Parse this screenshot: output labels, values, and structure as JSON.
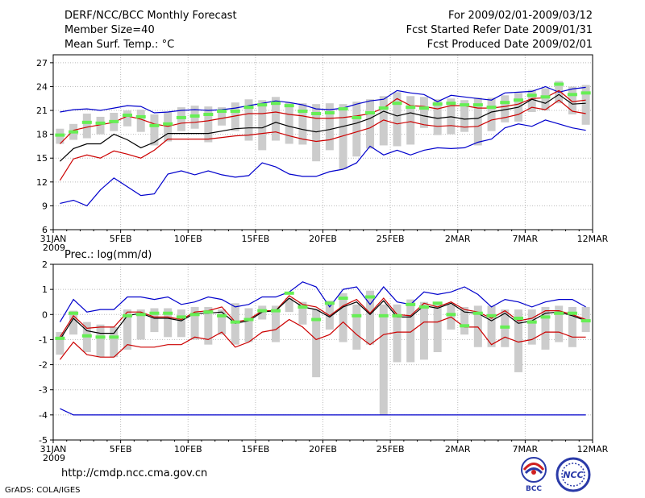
{
  "header": {
    "title": "DERF/NCC/BCC Monthly Forecast",
    "member_size": "Member Size=40",
    "variable": "Mean Surf. Temp.: °C",
    "period": "For 2009/02/01-2009/03/12",
    "refer_date": "Fcst Started Refer Date 2009/01/31",
    "produced_date": "Fcst Produced Date 2009/02/01"
  },
  "footer": {
    "url": "http://cmdp.ncc.cma.gov.cn",
    "credit": "GrADS: COLA/IGES",
    "logo_bcc": "BCC",
    "logo_ncc": "NCC"
  },
  "colors": {
    "max_min": "#0000cc",
    "spread": "#cc0000",
    "ensemble_mean": "#000000",
    "box": "#cccccc",
    "median": "#66ee55",
    "grid": "#bbbbbb"
  },
  "chart_data": [
    {
      "type": "box",
      "variable": "Mean Surf. Temp.",
      "unit": "°C",
      "xlim": [
        "2009-01-31",
        "2009-03-12"
      ],
      "xticks": [
        "31JAN",
        "5FEB",
        "10FEB",
        "15FEB",
        "20FEB",
        "25FEB",
        "2MAR",
        "7MAR",
        "12MAR"
      ],
      "xtick_year": "2009",
      "ylim": [
        6,
        28
      ],
      "yticks": [
        6,
        9,
        12,
        15,
        18,
        21,
        24,
        27
      ],
      "days": 40,
      "series": [
        {
          "name": "max",
          "values": [
            20.8,
            21.1,
            21.2,
            21.0,
            21.3,
            21.6,
            21.5,
            20.7,
            20.8,
            21.0,
            21.1,
            21.0,
            21.1,
            21.3,
            21.6,
            21.9,
            22.2,
            22.0,
            21.7,
            21.2,
            21.1,
            21.3,
            21.8,
            22.2,
            22.4,
            23.5,
            23.2,
            23.0,
            22.1,
            22.9,
            22.7,
            22.5,
            22.3,
            23.2,
            23.3,
            23.4,
            24.0,
            23.3,
            23.7,
            23.9
          ]
        },
        {
          "name": "upper",
          "values": [
            16.8,
            18.5,
            18.9,
            19.2,
            19.5,
            20.3,
            19.9,
            19.3,
            19.0,
            19.4,
            19.5,
            19.7,
            20.0,
            20.3,
            20.6,
            20.6,
            20.8,
            20.5,
            20.3,
            20.0,
            20.0,
            20.1,
            20.3,
            20.6,
            21.3,
            22.5,
            21.6,
            21.5,
            21.2,
            21.6,
            21.6,
            21.3,
            21.3,
            21.5,
            21.8,
            22.5,
            22.6,
            23.5,
            22.1,
            22.3
          ]
        },
        {
          "name": "mean",
          "values": [
            14.6,
            16.2,
            16.8,
            16.8,
            18.0,
            17.3,
            16.3,
            17.0,
            18.1,
            18.1,
            18.1,
            18.1,
            18.4,
            18.7,
            18.8,
            18.8,
            19.5,
            19.0,
            18.6,
            18.3,
            18.6,
            19.0,
            19.4,
            20.0,
            20.9,
            20.3,
            20.7,
            20.3,
            20.0,
            20.2,
            19.9,
            20.0,
            20.8,
            21.1,
            21.4,
            22.4,
            21.9,
            23.0,
            21.8,
            21.9
          ]
        },
        {
          "name": "lower",
          "values": [
            12.2,
            14.9,
            15.4,
            15.0,
            15.9,
            15.5,
            15.0,
            16.0,
            17.4,
            17.4,
            17.4,
            17.4,
            17.6,
            17.8,
            17.9,
            18.1,
            18.3,
            17.8,
            17.4,
            17.1,
            17.3,
            17.8,
            18.3,
            18.8,
            19.8,
            19.3,
            19.6,
            19.2,
            19.0,
            19.1,
            18.9,
            19.0,
            19.8,
            20.1,
            20.5,
            21.4,
            21.1,
            22.3,
            20.9,
            20.6
          ]
        },
        {
          "name": "min",
          "values": [
            9.3,
            9.7,
            9.0,
            11.0,
            12.5,
            11.4,
            10.3,
            10.5,
            13.0,
            13.4,
            12.9,
            13.4,
            12.9,
            12.6,
            12.8,
            14.4,
            13.9,
            13.0,
            12.7,
            12.7,
            13.3,
            13.6,
            14.4,
            16.5,
            15.4,
            16.0,
            15.4,
            16.0,
            16.3,
            16.2,
            16.3,
            17.0,
            17.4,
            18.8,
            19.3,
            19.0,
            19.8,
            19.3,
            18.8,
            18.5
          ]
        },
        {
          "name": "median",
          "values": [
            17.9,
            18.3,
            19.5,
            19.4,
            19.6,
            20.4,
            20.2,
            19.1,
            19.3,
            20.1,
            20.3,
            20.5,
            20.9,
            20.9,
            21.4,
            21.7,
            21.9,
            21.6,
            20.9,
            20.6,
            20.7,
            21.2,
            20.1,
            20.7,
            21.3,
            21.9,
            21.4,
            21.3,
            21.8,
            21.9,
            21.7,
            21.7,
            21.4,
            22.0,
            22.3,
            22.9,
            22.7,
            24.3,
            23.0,
            23.2
          ]
        },
        {
          "name": "box_top",
          "values": [
            18.7,
            19.3,
            20.6,
            20.2,
            20.7,
            21.0,
            21.1,
            20.5,
            20.8,
            21.4,
            21.6,
            21.5,
            21.4,
            22.0,
            22.4,
            22.3,
            22.7,
            22.0,
            21.9,
            21.8,
            21.9,
            21.8,
            22.1,
            22.4,
            22.8,
            23.3,
            22.8,
            22.7,
            22.4,
            22.5,
            22.3,
            22.6,
            22.6,
            22.9,
            23.2,
            23.6,
            23.8,
            24.7,
            24.0,
            24.2
          ]
        },
        {
          "name": "box_bottom",
          "values": [
            16.8,
            17.3,
            17.5,
            18.0,
            18.4,
            19.0,
            18.3,
            16.6,
            17.1,
            18.4,
            18.7,
            17.0,
            19.1,
            18.4,
            17.2,
            16.0,
            17.2,
            16.8,
            16.7,
            14.6,
            16.0,
            13.6,
            15.2,
            16.2,
            16.6,
            16.5,
            16.7,
            18.8,
            17.9,
            18.0,
            18.3,
            16.6,
            18.4,
            19.5,
            19.6,
            20.8,
            21.0,
            21.9,
            20.5,
            19.2
          ]
        }
      ]
    },
    {
      "type": "box",
      "variable": "Prec.: log(mm/d)",
      "unit": "log(mm/d)",
      "xlim": [
        "2009-01-31",
        "2009-03-12"
      ],
      "xticks": [
        "31JAN",
        "5FEB",
        "10FEB",
        "15FEB",
        "20FEB",
        "25FEB",
        "2MAR",
        "7MAR",
        "12MAR"
      ],
      "xtick_year": "2009",
      "ylim": [
        -5,
        2
      ],
      "yticks": [
        -5,
        -4,
        -3,
        -2,
        -1,
        0,
        1,
        2
      ],
      "days": 40,
      "series": [
        {
          "name": "max",
          "values": [
            -0.3,
            0.6,
            0.1,
            0.2,
            0.2,
            0.7,
            0.7,
            0.6,
            0.7,
            0.4,
            0.5,
            0.7,
            0.6,
            0.3,
            0.4,
            0.7,
            0.7,
            0.9,
            1.3,
            1.1,
            0.3,
            1.0,
            1.1,
            0.4,
            1.1,
            0.5,
            0.4,
            0.9,
            0.8,
            0.9,
            1.1,
            0.8,
            0.3,
            0.6,
            0.5,
            0.3,
            0.5,
            0.6,
            0.6,
            0.3
          ]
        },
        {
          "name": "upper",
          "values": [
            -0.9,
            -0.05,
            -0.55,
            -0.5,
            -0.5,
            0.1,
            0.1,
            -0.1,
            -0.1,
            -0.2,
            0.1,
            0.15,
            0.3,
            -0.3,
            -0.2,
            0.15,
            0.15,
            0.75,
            0.4,
            0.3,
            -0.05,
            0.35,
            0.6,
            0.05,
            0.65,
            0.0,
            -0.05,
            0.45,
            0.3,
            0.5,
            0.2,
            0.1,
            -0.15,
            0.15,
            -0.25,
            -0.15,
            0.15,
            0.15,
            0.0,
            -0.2
          ]
        },
        {
          "name": "mean",
          "values": [
            -1.0,
            -0.15,
            -0.65,
            -0.75,
            -0.75,
            -0.05,
            0.05,
            -0.15,
            -0.15,
            -0.25,
            0.05,
            0.05,
            0.1,
            -0.35,
            -0.25,
            0.1,
            0.15,
            0.65,
            0.3,
            0.2,
            -0.1,
            0.3,
            0.5,
            0.0,
            0.55,
            -0.1,
            -0.1,
            0.35,
            0.25,
            0.45,
            0.1,
            0.05,
            -0.25,
            0.05,
            -0.35,
            -0.25,
            0.05,
            0.1,
            -0.05,
            -0.25
          ]
        },
        {
          "name": "lower",
          "values": [
            -1.8,
            -1.1,
            -1.6,
            -1.7,
            -1.7,
            -1.2,
            -1.3,
            -1.3,
            -1.2,
            -1.2,
            -0.9,
            -1.0,
            -0.7,
            -1.3,
            -1.1,
            -0.7,
            -0.6,
            -0.2,
            -0.5,
            -1.0,
            -0.8,
            -0.3,
            -0.8,
            -1.2,
            -0.8,
            -0.7,
            -0.7,
            -0.3,
            -0.3,
            -0.1,
            -0.5,
            -0.5,
            -1.2,
            -0.9,
            -1.1,
            -1.0,
            -0.7,
            -0.7,
            -0.9,
            -0.9
          ]
        },
        {
          "name": "min",
          "values": [
            -3.75,
            -4.0,
            -4.0,
            -4.0,
            -4.0,
            -4.0,
            -4.0,
            -4.0,
            -4.0,
            -4.0,
            -4.0,
            -4.0,
            -4.0,
            -4.0,
            -4.0,
            -4.0,
            -4.0,
            -4.0,
            -4.0,
            -4.0,
            -4.0,
            -4.0,
            -4.0,
            -4.0,
            -4.0,
            -4.0,
            -4.0,
            -4.0,
            -4.0,
            -4.0,
            -4.0,
            -4.0,
            -4.0,
            -4.0,
            -4.0,
            -4.0,
            -4.0,
            -4.0,
            -4.0,
            -4.0
          ]
        },
        {
          "name": "median",
          "values": [
            -0.95,
            0.05,
            -0.85,
            -0.9,
            -0.9,
            -0.05,
            0.0,
            0.05,
            0.05,
            -0.1,
            0.0,
            0.1,
            -0.05,
            -0.3,
            -0.2,
            0.15,
            0.15,
            0.85,
            0.3,
            -0.2,
            0.45,
            0.65,
            -0.05,
            0.7,
            -0.05,
            -0.05,
            0.4,
            0.3,
            0.45,
            0.0,
            -0.45,
            0.05,
            -0.05,
            -0.5,
            -0.15,
            -0.3,
            -0.1,
            0.05,
            0.05,
            -0.25
          ]
        },
        {
          "name": "box_top",
          "values": [
            -0.7,
            0.15,
            -0.3,
            -0.4,
            -0.5,
            0.2,
            0.2,
            0.25,
            0.25,
            0.2,
            0.3,
            0.3,
            0.2,
            0.45,
            0.25,
            0.35,
            0.35,
            0.65,
            0.5,
            0.2,
            0.55,
            0.85,
            0.4,
            0.95,
            0.4,
            0.4,
            0.6,
            0.5,
            0.5,
            0.4,
            0.3,
            0.35,
            0.35,
            0.2,
            0.2,
            0.2,
            0.3,
            0.35,
            0.3,
            0.3
          ]
        },
        {
          "name": "box_bottom",
          "values": [
            -1.6,
            -0.8,
            -1.5,
            -1.7,
            -1.7,
            -1.4,
            -1.0,
            -0.7,
            -0.9,
            -0.9,
            -1.0,
            -1.2,
            -0.8,
            -1.2,
            -1.1,
            -0.2,
            -1.1,
            0.1,
            -0.4,
            -2.5,
            -0.6,
            -1.1,
            -1.4,
            -1.2,
            -4.0,
            -1.9,
            -1.9,
            -1.8,
            -1.5,
            -0.6,
            -0.8,
            -1.3,
            -1.3,
            -1.3,
            -2.3,
            -1.2,
            -1.4,
            -1.1,
            -1.3,
            -0.7
          ]
        }
      ]
    }
  ]
}
